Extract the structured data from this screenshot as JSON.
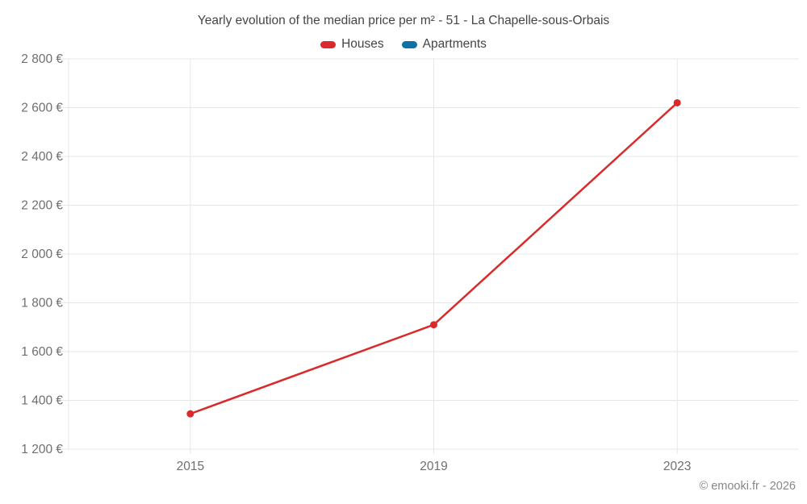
{
  "title": "Yearly evolution of the median price per m² - 51 - La Chapelle-sous-Orbais",
  "legend": [
    {
      "label": "Houses",
      "color": "#d92b2b"
    },
    {
      "label": "Apartments",
      "color": "#0f72a5"
    }
  ],
  "footer": {
    "copyright": "© emooki.fr - 2026"
  },
  "colors": {
    "houses": "#d92b2b",
    "apartments": "#0f72a5",
    "gridline": "#e7e7e7",
    "axis_text": "#6f6f6f",
    "title_text": "#454545",
    "background": "#ffffff"
  },
  "chart_data": {
    "type": "line",
    "title": "Yearly evolution of the median price per m² - 51 - La Chapelle-sous-Orbais",
    "x": [
      2015,
      2019,
      2023
    ],
    "x_tick_labels": [
      "2015",
      "2019",
      "2023"
    ],
    "series": [
      {
        "name": "Houses",
        "color": "#d92b2b",
        "values": [
          1345,
          1710,
          2620
        ]
      },
      {
        "name": "Apartments",
        "color": "#0f72a5",
        "values": []
      }
    ],
    "xlabel": "",
    "ylabel": "",
    "ylim": [
      1200,
      2800
    ],
    "y_tick_step": 200,
    "y_tick_values": [
      1200,
      1400,
      1600,
      1800,
      2000,
      2200,
      2400,
      2600,
      2800
    ],
    "y_tick_labels": [
      "1 200 €",
      "1 400 €",
      "1 600 €",
      "1 800 €",
      "2 000 €",
      "2 200 €",
      "2 400 €",
      "2 600 €",
      "2 800 €"
    ],
    "grid": true,
    "legend_position": "top",
    "currency": "€"
  }
}
